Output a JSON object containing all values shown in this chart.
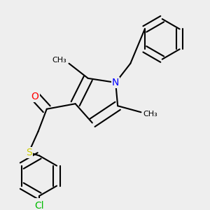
{
  "bg_color": "#eeeeee",
  "bond_color": "#000000",
  "bond_width": 1.5,
  "atom_colors": {
    "N": "#0000ff",
    "O": "#ff0000",
    "S": "#cccc00",
    "Cl": "#00bb00",
    "C": "#000000"
  },
  "font_size": 9
}
